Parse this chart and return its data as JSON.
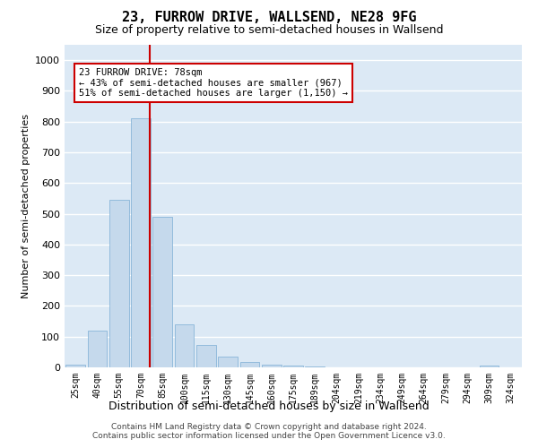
{
  "title": "23, FURROW DRIVE, WALLSEND, NE28 9FG",
  "subtitle": "Size of property relative to semi-detached houses in Wallsend",
  "xlabel": "Distribution of semi-detached houses by size in Wallsend",
  "ylabel": "Number of semi-detached properties",
  "categories": [
    "25sqm",
    "40sqm",
    "55sqm",
    "70sqm",
    "85sqm",
    "100sqm",
    "115sqm",
    "130sqm",
    "145sqm",
    "160sqm",
    "175sqm",
    "189sqm",
    "204sqm",
    "219sqm",
    "234sqm",
    "249sqm",
    "264sqm",
    "279sqm",
    "294sqm",
    "309sqm",
    "324sqm"
  ],
  "values": [
    10,
    120,
    545,
    810,
    490,
    140,
    72,
    35,
    18,
    10,
    5,
    2,
    1,
    0,
    0,
    0,
    0,
    0,
    0,
    5,
    0
  ],
  "bar_color": "#c5d9ec",
  "bar_edge_color": "#7aadd4",
  "vline_x_index": 3.43,
  "vline_color": "#cc0000",
  "annotation_box_color": "#cc0000",
  "property_label": "23 FURROW DRIVE: 78sqm",
  "smaller_pct": "43%",
  "smaller_count": "967",
  "larger_pct": "51%",
  "larger_count": "1,150",
  "ylim": [
    0,
    1050
  ],
  "yticks": [
    0,
    100,
    200,
    300,
    400,
    500,
    600,
    700,
    800,
    900,
    1000
  ],
  "background_color": "#dce9f5",
  "footer1": "Contains HM Land Registry data © Crown copyright and database right 2024.",
  "footer2": "Contains public sector information licensed under the Open Government Licence v3.0.",
  "title_fontsize": 11,
  "subtitle_fontsize": 9,
  "xlabel_fontsize": 9,
  "ylabel_fontsize": 8
}
